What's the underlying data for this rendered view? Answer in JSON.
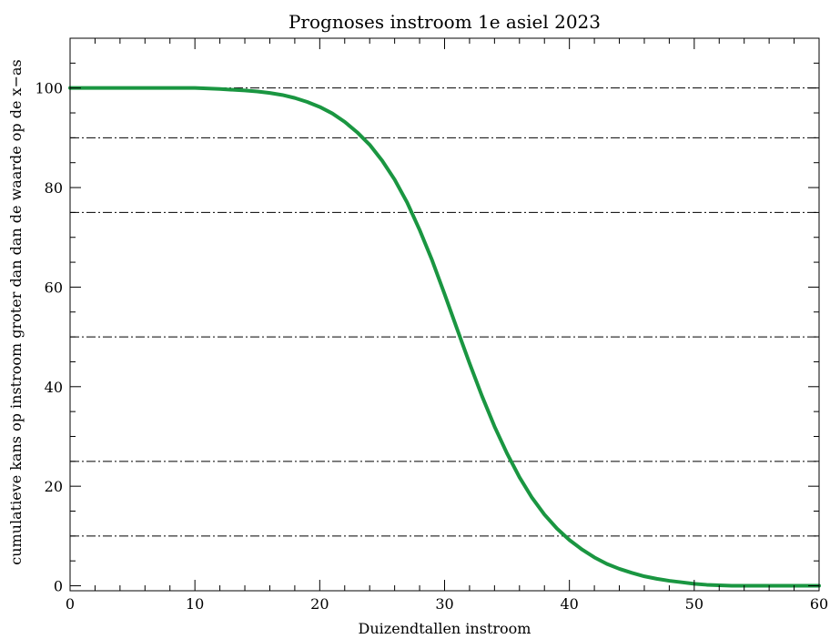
{
  "chart_data": {
    "type": "line",
    "title": "Prognoses instroom 1e asiel 2023",
    "xlabel": "Duizendtallen instroom",
    "ylabel": "cumulatieve kans op instroom groter dan dan de waarde op de x−as",
    "xlim": [
      0,
      60
    ],
    "ylim": [
      -1,
      110
    ],
    "xticks": [
      0,
      10,
      20,
      30,
      40,
      50,
      60
    ],
    "yticks": [
      0,
      20,
      40,
      60,
      80,
      100
    ],
    "x_minor_step": 2,
    "y_minor_step": 5,
    "grid": false,
    "reference_lines": {
      "style": "dash-dot",
      "y": [
        10,
        25,
        50,
        75,
        90,
        100
      ]
    },
    "series": [
      {
        "color": "#1a9641",
        "x": [
          0,
          2,
          4,
          6,
          8,
          10,
          12,
          14,
          15,
          16,
          17,
          18,
          19,
          20,
          21,
          22,
          23,
          24,
          25,
          26,
          27,
          28,
          29,
          30,
          31,
          32,
          33,
          34,
          35,
          36,
          37,
          38,
          39,
          40,
          41,
          42,
          43,
          44,
          45,
          46,
          47,
          48,
          49,
          50,
          51,
          52,
          53,
          54,
          55,
          56,
          57,
          58,
          59,
          60
        ],
        "values": [
          100,
          100,
          100,
          100,
          100,
          100,
          99.8,
          99.5,
          99.3,
          99,
          98.6,
          98,
          97.2,
          96.2,
          94.9,
          93.2,
          91.1,
          88.6,
          85.4,
          81.6,
          77,
          71.5,
          65.4,
          58.6,
          51.6,
          44.7,
          38.1,
          32,
          26.6,
          21.8,
          17.7,
          14.3,
          11.5,
          9.2,
          7.3,
          5.7,
          4.4,
          3.4,
          2.6,
          1.9,
          1.4,
          1,
          0.7,
          0.4,
          0.2,
          0.1,
          0,
          0,
          0,
          0,
          0,
          0,
          0,
          0
        ]
      }
    ]
  }
}
